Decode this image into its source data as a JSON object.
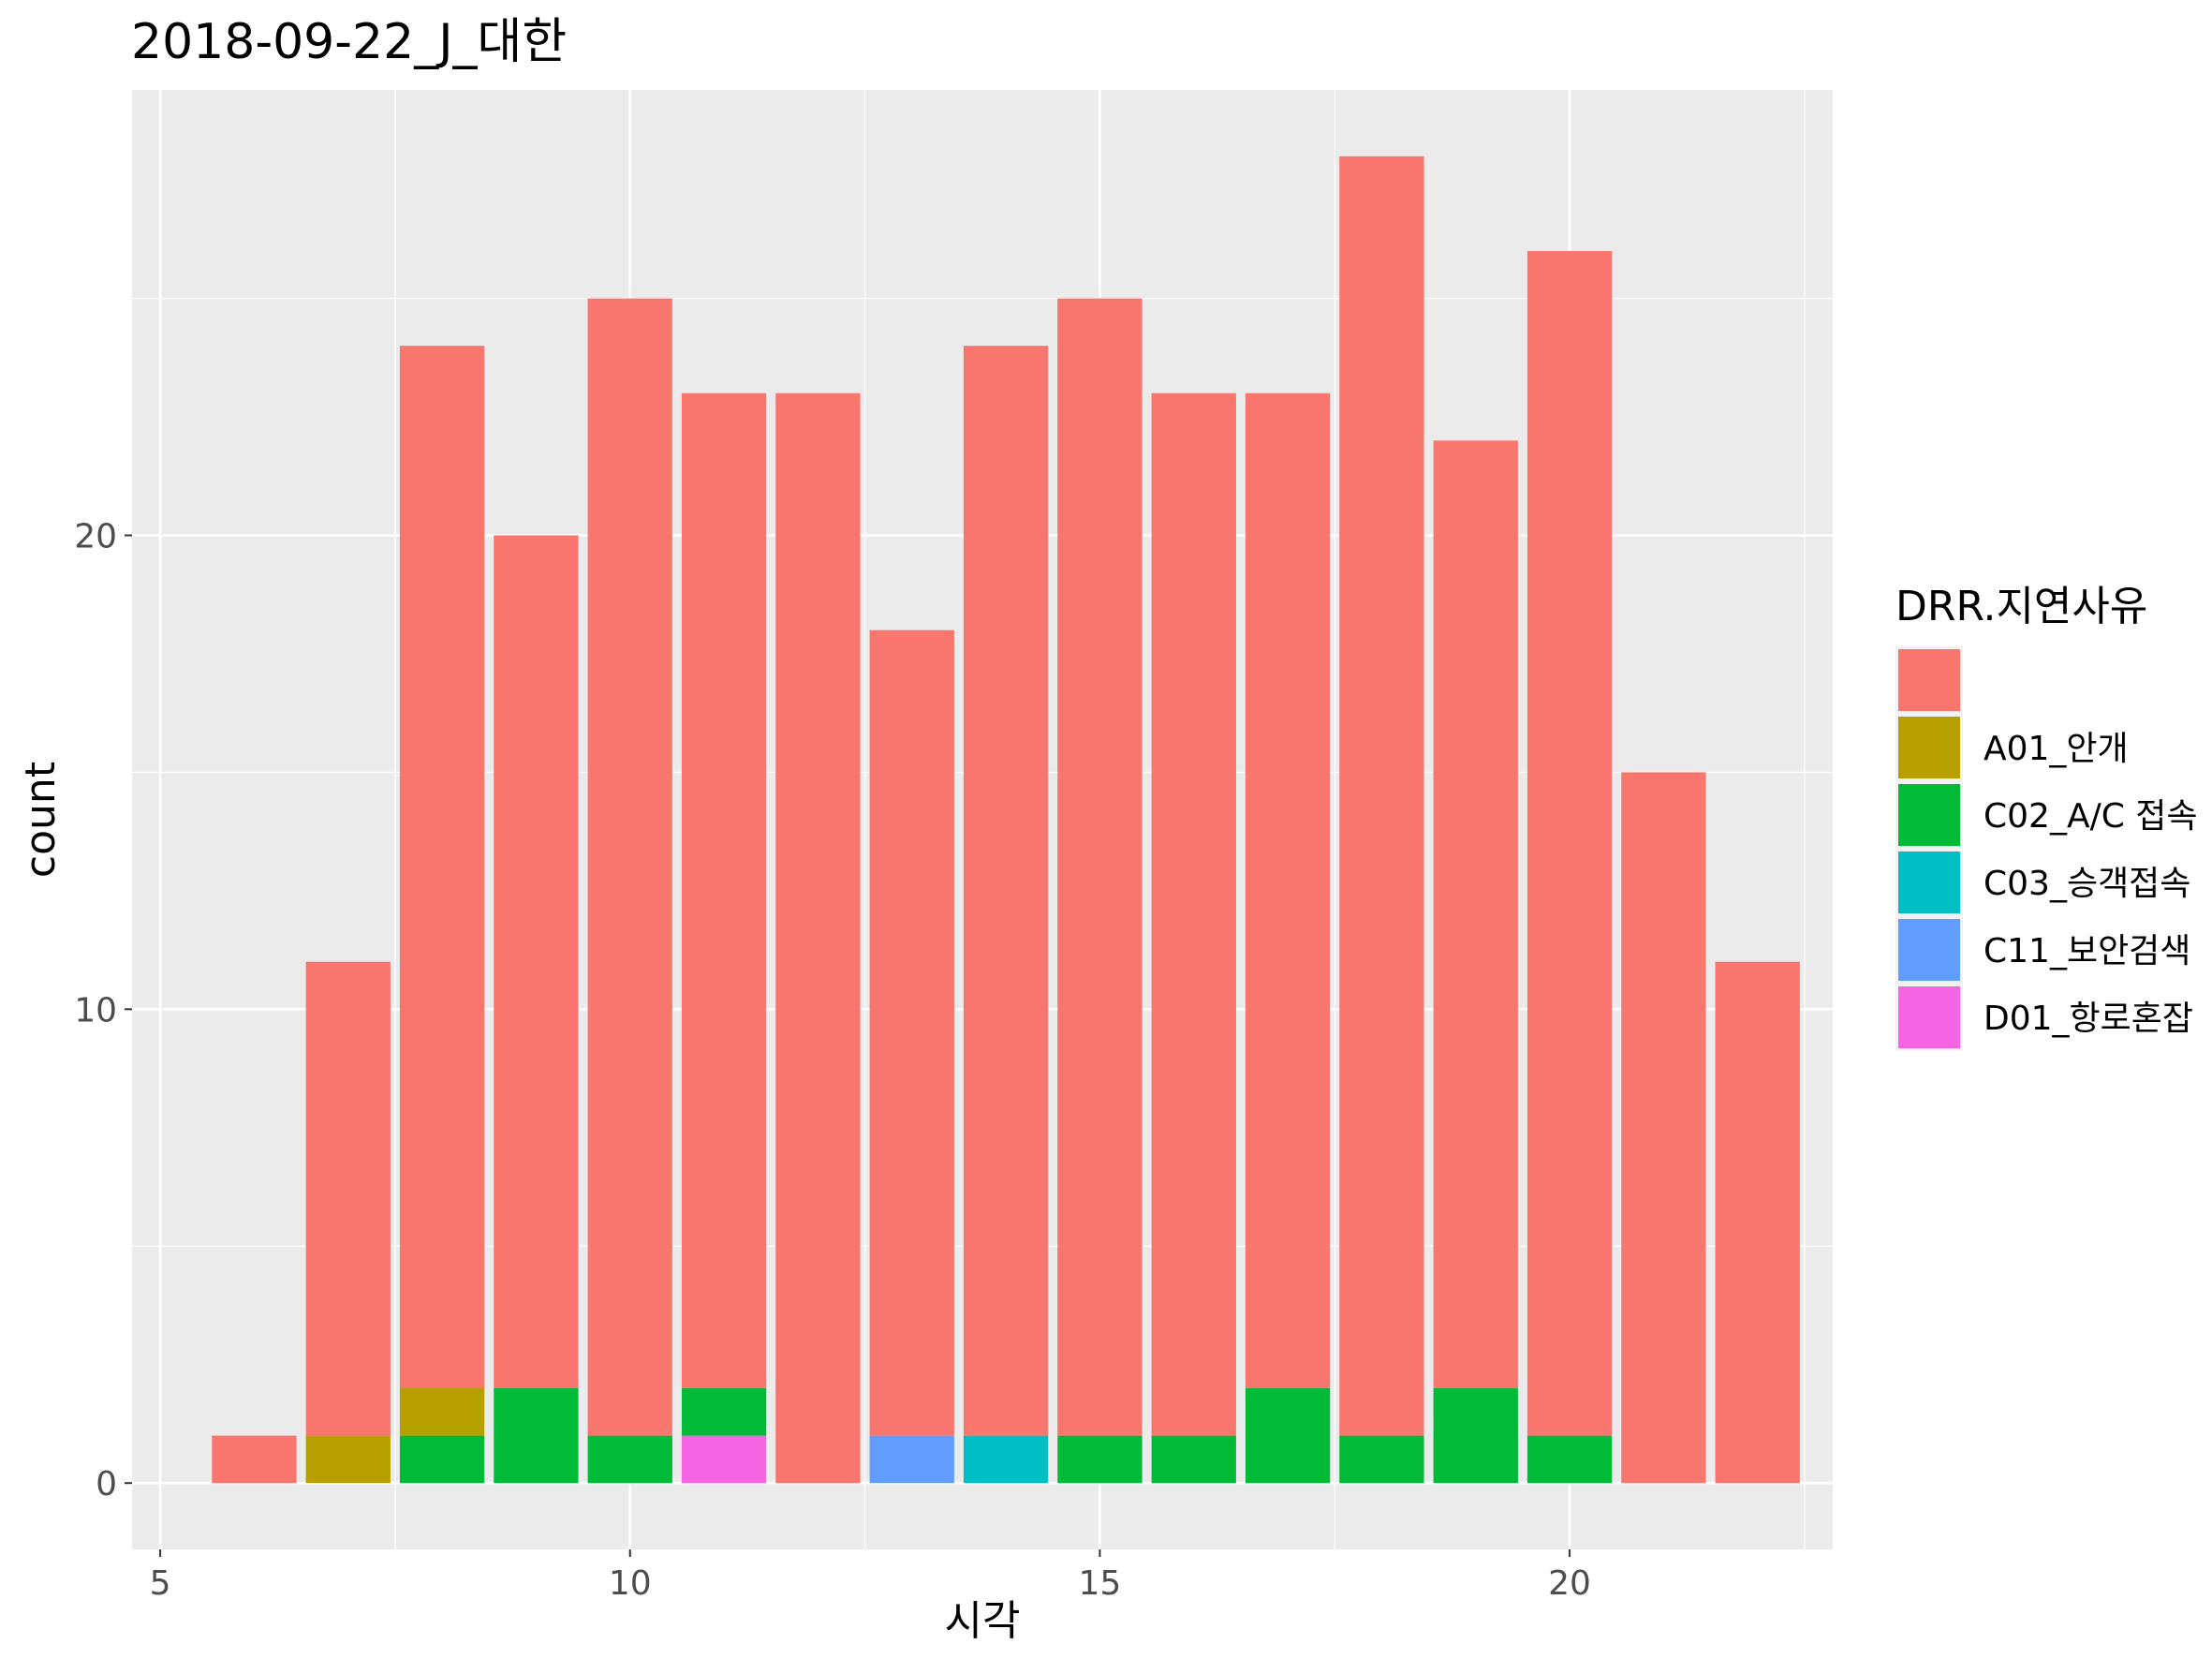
{
  "chart_data": {
    "type": "bar",
    "stacked": true,
    "title": "2018-09-22_J_대한",
    "xlabel": "시각",
    "ylabel": "count",
    "xlim": [
      4.7,
      22.8
    ],
    "ylim": [
      -1.4,
      29.4
    ],
    "x_ticks": [
      5,
      10,
      15,
      20
    ],
    "y_ticks": [
      0,
      10,
      20
    ],
    "x_tick_labels": [
      "5",
      "10",
      "15",
      "20"
    ],
    "y_tick_labels": [
      "0",
      "10",
      "20"
    ],
    "grid": true,
    "background": "#ebebeb",
    "legend": {
      "title": "DRR.지연사유",
      "position": "right"
    },
    "x": [
      6,
      7,
      8,
      9,
      10,
      11,
      12,
      13,
      14,
      15,
      16,
      17,
      18,
      19,
      20,
      21,
      22
    ],
    "stack_order": [
      "D01_항로혼잡",
      "C11_보안검색",
      "C03_승객접속",
      "C02_A/C 접속",
      "A01_안개",
      ""
    ],
    "series": [
      {
        "name": "",
        "color": "#F8766D",
        "values": [
          1,
          10,
          22,
          18,
          24,
          21,
          23,
          17,
          23,
          24,
          22,
          21,
          27,
          20,
          25,
          15,
          11
        ]
      },
      {
        "name": "A01_안개",
        "color": "#B79F00",
        "values": [
          0,
          1,
          1,
          0,
          0,
          0,
          0,
          0,
          0,
          0,
          0,
          0,
          0,
          0,
          0,
          0,
          0
        ]
      },
      {
        "name": "C02_A/C 접속",
        "color": "#00BA38",
        "values": [
          0,
          0,
          1,
          2,
          1,
          1,
          0,
          0,
          0,
          1,
          1,
          2,
          1,
          2,
          1,
          0,
          0
        ]
      },
      {
        "name": "C03_승객접속",
        "color": "#00BFC4",
        "values": [
          0,
          0,
          0,
          0,
          0,
          0,
          0,
          0,
          1,
          0,
          0,
          0,
          0,
          0,
          0,
          0,
          0
        ]
      },
      {
        "name": "C11_보안검색",
        "color": "#619CFF",
        "values": [
          0,
          0,
          0,
          0,
          0,
          0,
          0,
          1,
          0,
          0,
          0,
          0,
          0,
          0,
          0,
          0,
          0
        ]
      },
      {
        "name": "D01_항로혼잡",
        "color": "#F564E3",
        "values": [
          0,
          0,
          0,
          0,
          0,
          1,
          0,
          0,
          0,
          0,
          0,
          0,
          0,
          0,
          0,
          0,
          0
        ]
      }
    ]
  }
}
